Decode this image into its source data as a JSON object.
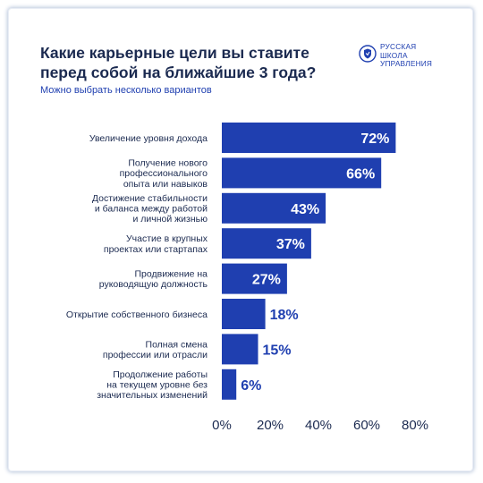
{
  "header": {
    "title_line1": "Какие карьерные цели вы ставите",
    "title_line2": "перед собой на ближайшие 3 года?",
    "subtitle": "Можно выбрать несколько вариантов"
  },
  "logo": {
    "line1": "РУССКАЯ",
    "line2": "ШКОЛА",
    "line3": "УПРАВЛЕНИЯ",
    "icon": "shield-logo-icon"
  },
  "colors": {
    "bar": "#1f3fb0",
    "label_inside": "#ffffff",
    "label_outside": "#1f3fb0",
    "text": "#1b2a50"
  },
  "chart_data": {
    "type": "bar",
    "orientation": "horizontal",
    "categories": [
      [
        "Увеличение уровня дохода"
      ],
      [
        "Получение нового",
        "профессионального",
        "опыта или навыков"
      ],
      [
        "Достижение стабильности",
        "и баланса между работой",
        "и личной жизнью"
      ],
      [
        "Участие в крупных",
        "проектах или стартапах"
      ],
      [
        "Продвижение на",
        "руководящую должность"
      ],
      [
        "Открытие собственного бизнеса"
      ],
      [
        "Полная смена",
        "профессии или отрасли"
      ],
      [
        "Продолжение работы",
        "на текущем уровне без",
        "значительных изменений"
      ]
    ],
    "values": [
      72,
      66,
      43,
      37,
      27,
      18,
      15,
      6
    ],
    "value_labels": [
      "72%",
      "66%",
      "43%",
      "37%",
      "27%",
      "18%",
      "15%",
      "6%"
    ],
    "xlim": [
      0,
      80
    ],
    "xticks": [
      0,
      20,
      40,
      60,
      80
    ],
    "xtick_labels": [
      "0%",
      "20%",
      "40%",
      "60%",
      "80%"
    ],
    "grid": false,
    "legend": "none"
  }
}
